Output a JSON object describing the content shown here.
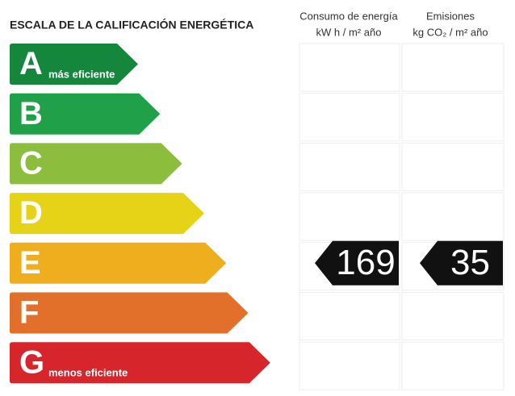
{
  "title": "ESCALA DE LA CALIFICACIÓN ENERGÉTICA",
  "columns": {
    "consumption": {
      "label": "Consumo de energía",
      "unit": "kW h  / m² año"
    },
    "emissions": {
      "label": "Emisiones",
      "unit": "kg CO₂ / m² año"
    }
  },
  "ratings": [
    {
      "letter": "A",
      "caption": "más eficiente",
      "color": "#14873c"
    },
    {
      "letter": "B",
      "color": "#21a04a"
    },
    {
      "letter": "C",
      "color": "#8cbd3c"
    },
    {
      "letter": "D",
      "color": "#e6d317"
    },
    {
      "letter": "E",
      "color": "#efae1e",
      "consumption": 169,
      "emissions": 35
    },
    {
      "letter": "F",
      "color": "#e3702a"
    },
    {
      "letter": "G",
      "caption": "menos eficiente",
      "color": "#d7262b"
    }
  ]
}
